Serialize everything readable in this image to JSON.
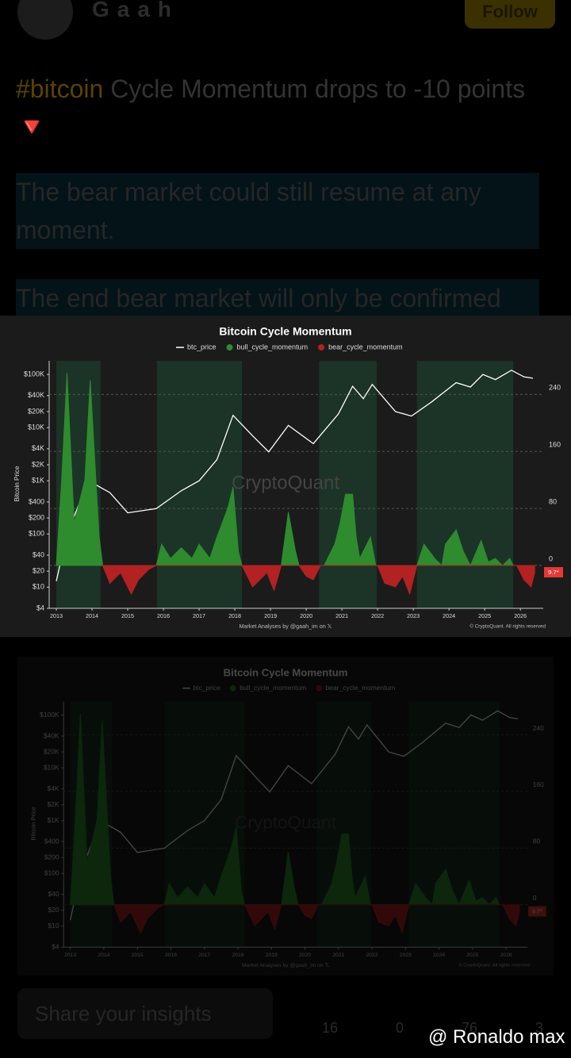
{
  "header": {
    "name": "Gaah",
    "follow": "Follow"
  },
  "post": {
    "hashtag": "#bitcoin",
    "title": "Cycle Momentum drops to -10 points",
    "emoji": "🔻",
    "paragraphs": [
      "The bear market could still resume at any moment.",
      "The end bear market will only be confirmed"
    ]
  },
  "chart": {
    "type": "line",
    "title": "Bitcoin Cycle Momentum",
    "y_label": "Bitcoin Price",
    "watermark": "CryptoQuant",
    "credit": "Market Analyses by @gaah_im on 𝕏",
    "copyright": "© CryptoQuant. All rights reserved",
    "last_value_label": "9.7*",
    "xlim": [
      2012.8,
      2026.64
    ],
    "xticks": [
      2013,
      2014,
      2015,
      2016,
      2017,
      2018,
      2019,
      2020,
      2021,
      2022,
      2023,
      2024,
      2025,
      2026
    ],
    "log_y": true,
    "ylim": [
      4,
      180000
    ],
    "yticks": [
      {
        "value": 100000,
        "label": "$100K"
      },
      {
        "value": 40000,
        "label": "$40K"
      },
      {
        "value": 20000,
        "label": "$20K"
      },
      {
        "value": 10000,
        "label": "$10K"
      },
      {
        "value": 4000,
        "label": "$4K"
      },
      {
        "value": 2000,
        "label": "$2K"
      },
      {
        "value": 1000,
        "label": "$1K"
      },
      {
        "value": 400,
        "label": "$400"
      },
      {
        "value": 200,
        "label": "$200"
      },
      {
        "value": 100,
        "label": "$100"
      },
      {
        "value": 40,
        "label": "$40"
      },
      {
        "value": 20,
        "label": "$20"
      },
      {
        "value": 10,
        "label": "$10"
      },
      {
        "value": 4,
        "label": "$4"
      }
    ],
    "y2lim": [
      -60,
      287
    ],
    "y2ticks": [
      0,
      80,
      160,
      240
    ],
    "bull_periods": [
      [
        2013.0,
        2014.24
      ],
      [
        2015.82,
        2018.2
      ],
      [
        2020.36,
        2021.98
      ],
      [
        2023.1,
        2025.8
      ]
    ],
    "series": [
      {
        "name": "btc_price",
        "color": "#ffffff",
        "x": [
          2013.0,
          2013.3,
          2013.9,
          2014.5,
          2015.0,
          2015.8,
          2016.5,
          2017.0,
          2017.5,
          2017.95,
          2018.5,
          2018.95,
          2019.5,
          2020.2,
          2020.9,
          2021.3,
          2021.6,
          2021.85,
          2022.5,
          2022.95,
          2023.5,
          2024.2,
          2024.6,
          2024.95,
          2025.3,
          2025.75,
          2026.1,
          2026.35
        ],
        "values": [
          13,
          100,
          1000,
          600,
          250,
          300,
          650,
          1000,
          2500,
          17000,
          7000,
          3500,
          11000,
          5000,
          18000,
          60000,
          35000,
          65000,
          20000,
          16500,
          30000,
          70000,
          58000,
          100000,
          80000,
          120000,
          90000,
          85000
        ]
      },
      {
        "name": "bull_cycle_momentum",
        "color": "#2e8b2e",
        "axis": "y2",
        "x": [
          2013.0,
          2013.15,
          2013.3,
          2013.5,
          2013.8,
          2013.95,
          2014.2,
          2014.3,
          2015.8,
          2015.95,
          2016.2,
          2016.5,
          2016.8,
          2017.0,
          2017.3,
          2017.5,
          2017.8,
          2017.95,
          2018.1,
          2018.2,
          2019.3,
          2019.5,
          2019.7,
          2019.8,
          2020.5,
          2020.8,
          2020.95,
          2021.1,
          2021.3,
          2021.4,
          2021.5,
          2021.8,
          2021.95,
          2023.1,
          2023.3,
          2023.6,
          2023.8,
          2023.9,
          2024.2,
          2024.4,
          2024.6,
          2024.9,
          2025.1,
          2025.3,
          2025.5,
          2025.7,
          2025.8
        ],
        "values": [
          0,
          120,
          270,
          60,
          120,
          260,
          40,
          0,
          0,
          30,
          10,
          25,
          10,
          30,
          10,
          40,
          80,
          110,
          20,
          0,
          0,
          75,
          20,
          0,
          0,
          30,
          60,
          100,
          100,
          40,
          10,
          40,
          0,
          0,
          30,
          10,
          0,
          30,
          50,
          20,
          0,
          35,
          5,
          10,
          0,
          10,
          0
        ]
      },
      {
        "name": "bear_cycle_momentum",
        "color": "#b22222",
        "axis": "y2",
        "x": [
          2014.3,
          2014.5,
          2014.8,
          2015.1,
          2015.3,
          2015.6,
          2015.8,
          2018.2,
          2018.5,
          2018.9,
          2019.1,
          2019.3,
          2019.8,
          2020.0,
          2020.2,
          2020.4,
          2022.0,
          2022.2,
          2022.5,
          2022.7,
          2022.9,
          2023.1,
          2025.9,
          2026.1,
          2026.3,
          2026.4
        ],
        "values": [
          0,
          -25,
          -10,
          -40,
          -20,
          -5,
          0,
          0,
          -30,
          -10,
          -35,
          0,
          0,
          -15,
          -20,
          0,
          0,
          -25,
          -30,
          -15,
          -40,
          0,
          0,
          -20,
          -30,
          -10
        ]
      }
    ]
  },
  "actions": {
    "input": "Share your insights",
    "comments": "16",
    "reposts": "0",
    "likes": "76",
    "shares": "3"
  },
  "watermark": "@ Ronaldo max"
}
